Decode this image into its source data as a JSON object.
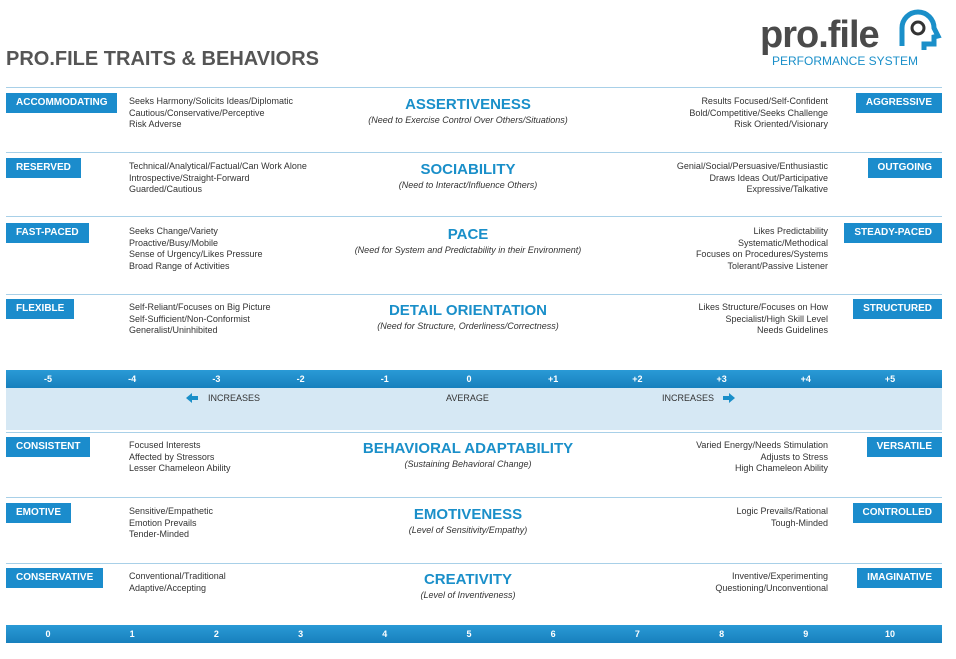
{
  "header": {
    "title": "PRO.FILE TRAITS & BEHAVIORS",
    "logo": {
      "name": "pro.file",
      "tagline": "PERFORMANCE SYSTEM"
    }
  },
  "upper_rows": [
    {
      "left_label": "ACCOMMODATING",
      "left_traits": [
        "Seeks Harmony/Solicits Ideas/Diplomatic",
        "Cautious/Conservative/Perceptive",
        "Risk Adverse"
      ],
      "title": "ASSERTIVENESS",
      "subtitle": "(Need to Exercise Control Over Others/Situations)",
      "right_traits": [
        "Results Focused/Self-Confident",
        "Bold/Competitive/Seeks Challenge",
        "Risk Oriented/Visionary"
      ],
      "right_label": "AGGRESSIVE"
    },
    {
      "left_label": "RESERVED",
      "left_traits": [
        "Technical/Analytical/Factual/Can Work Alone",
        "Introspective/Straight-Forward",
        "Guarded/Cautious"
      ],
      "title": "SOCIABILITY",
      "subtitle": "(Need to Interact/Influence Others)",
      "right_traits": [
        "Genial/Social/Persuasive/Enthusiastic",
        "Draws Ideas Out/Participative",
        "Expressive/Talkative"
      ],
      "right_label": "OUTGOING"
    },
    {
      "left_label": "FAST-PACED",
      "left_traits": [
        "Seeks Change/Variety",
        "Proactive/Busy/Mobile",
        "Sense of Urgency/Likes Pressure",
        "Broad Range of Activities"
      ],
      "title": "PACE",
      "subtitle": "(Need for System and Predictability in their Environment)",
      "right_traits": [
        "Likes Predictability",
        "Systematic/Methodical",
        "Focuses on Procedures/Systems",
        "Tolerant/Passive Listener"
      ],
      "right_label": "STEADY-PACED"
    },
    {
      "left_label": "FLEXIBLE",
      "left_traits": [
        "Self-Reliant/Focuses on Big Picture",
        "Self-Sufficient/Non-Conformist",
        "Generalist/Uninhibited"
      ],
      "title": "DETAIL ORIENTATION",
      "subtitle": "(Need for Structure, Orderliness/Correctness)",
      "right_traits": [
        "Likes Structure/Focuses on How",
        "Specialist/High Skill Level",
        "Needs Guidelines"
      ],
      "right_label": "STRUCTURED"
    }
  ],
  "scale": {
    "values": [
      "-5",
      "-4",
      "-3",
      "-2",
      "-1",
      "0",
      "+1",
      "+2",
      "+3",
      "+4",
      "+5"
    ],
    "left_label": "INCREASES",
    "center_label": "AVERAGE",
    "right_label": "INCREASES"
  },
  "lower_rows": [
    {
      "left_label": "CONSISTENT",
      "left_traits": [
        "Focused Interests",
        "Affected by Stressors",
        "Lesser Chameleon Ability"
      ],
      "title": "BEHAVIORAL ADAPTABILITY",
      "subtitle": "(Sustaining Behavioral Change)",
      "right_traits": [
        "Varied Energy/Needs Stimulation",
        "Adjusts to Stress",
        "High Chameleon Ability"
      ],
      "right_label": "VERSATILE"
    },
    {
      "left_label": "EMOTIVE",
      "left_traits": [
        "Sensitive/Empathetic",
        "Emotion Prevails",
        "Tender-Minded"
      ],
      "title": "EMOTIVENESS",
      "subtitle": "(Level of Sensitivity/Empathy)",
      "right_traits": [
        "Logic Prevails/Rational",
        "Tough-Minded"
      ],
      "right_label": "CONTROLLED"
    },
    {
      "left_label": "CONSERVATIVE",
      "left_traits": [
        "Conventional/Traditional",
        "Adaptive/Accepting"
      ],
      "title": "CREATIVITY",
      "subtitle": "(Level of Inventiveness)",
      "right_traits": [
        "Inventive/Experimenting",
        "Questioning/Unconventional"
      ],
      "right_label": "IMAGINATIVE"
    }
  ],
  "bottom_scale": {
    "values": [
      "0",
      "1",
      "2",
      "3",
      "4",
      "5",
      "6",
      "7",
      "8",
      "9",
      "10"
    ]
  }
}
